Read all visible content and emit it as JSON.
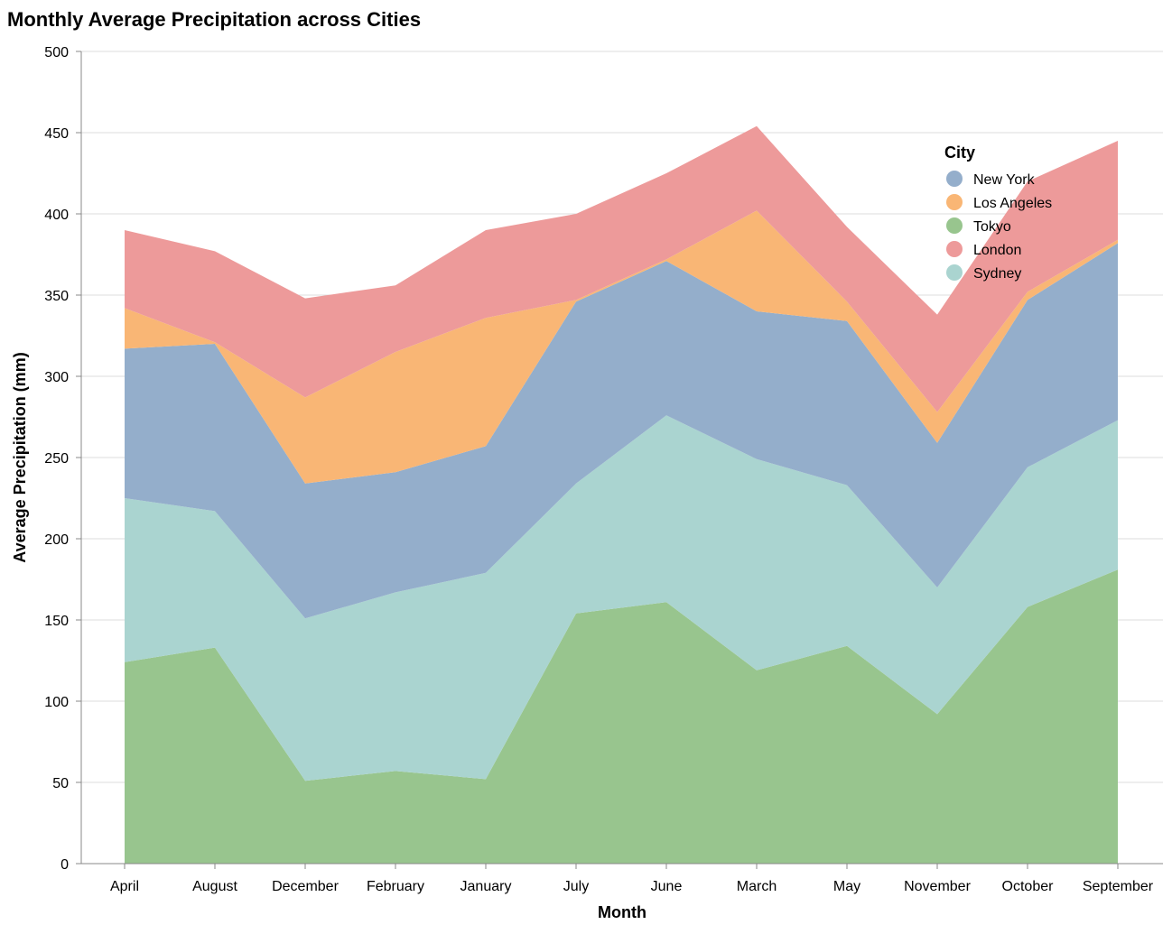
{
  "chart_data": {
    "type": "area",
    "stacked": true,
    "title": "Monthly Average Precipitation across Cities",
    "xlabel": "Month",
    "ylabel": "Average Precipitation (mm)",
    "ylim": [
      0,
      500
    ],
    "yticks": [
      0,
      50,
      100,
      150,
      200,
      250,
      300,
      350,
      400,
      450,
      500
    ],
    "grid": true,
    "legend_title": "City",
    "legend_position": "top-right",
    "categories": [
      "April",
      "August",
      "December",
      "February",
      "January",
      "July",
      "June",
      "March",
      "May",
      "November",
      "October",
      "September"
    ],
    "legend_order": [
      "New York",
      "Los Angeles",
      "Tokyo",
      "London",
      "Sydney"
    ],
    "stack_order": [
      "Tokyo",
      "Sydney",
      "New York",
      "Los Angeles",
      "London"
    ],
    "series": [
      {
        "name": "New York",
        "color": "#94aecb",
        "values": [
          92,
          103,
          83,
          74,
          78,
          112,
          95,
          91,
          101,
          89,
          103,
          109
        ]
      },
      {
        "name": "Los Angeles",
        "color": "#f9b675",
        "values": [
          25,
          1,
          53,
          74,
          79,
          1,
          1,
          62,
          12,
          19,
          5,
          2
        ]
      },
      {
        "name": "Tokyo",
        "color": "#98c58e",
        "values": [
          124,
          133,
          51,
          57,
          52,
          154,
          161,
          119,
          134,
          92,
          158,
          181
        ]
      },
      {
        "name": "London",
        "color": "#ed9a9a",
        "values": [
          48,
          56,
          61,
          41,
          54,
          53,
          53,
          52,
          46,
          60,
          68,
          61
        ]
      },
      {
        "name": "Sydney",
        "color": "#aad4d0",
        "values": [
          101,
          84,
          100,
          110,
          127,
          80,
          115,
          130,
          99,
          78,
          86,
          92
        ]
      }
    ]
  }
}
